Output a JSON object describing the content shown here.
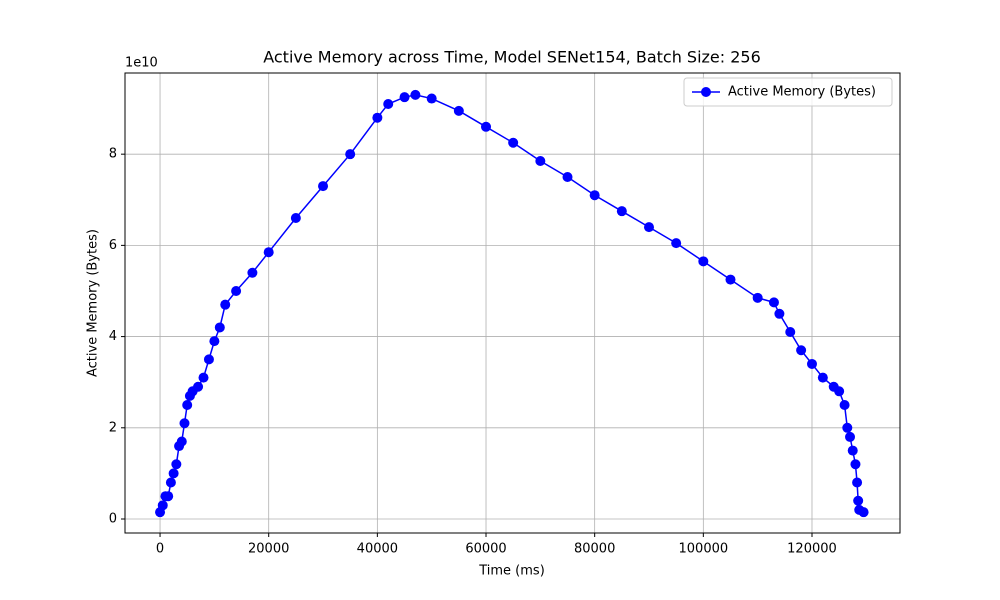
{
  "chart_data": {
    "type": "line",
    "title": "Active Memory across Time, Model SENet154, Batch Size: 256",
    "x_label": "Time (ms)",
    "y_label": "Active Memory (Bytes)",
    "y_offset_label": "1e10",
    "grid": true,
    "legend": "upper right",
    "marker": "o",
    "xlim": [
      -6450,
      136200
    ],
    "xticks": [
      0,
      20000,
      40000,
      60000,
      80000,
      100000,
      120000
    ],
    "ylim": [
      -3070000000.0,
      97800000000.0
    ],
    "yticks": [
      {
        "value": 0,
        "label": "0"
      },
      {
        "value": 20000000000.0,
        "label": "2"
      },
      {
        "value": 40000000000.0,
        "label": "4"
      },
      {
        "value": 60000000000.0,
        "label": "6"
      },
      {
        "value": 80000000000.0,
        "label": "8"
      }
    ],
    "x": [
      0,
      500,
      1000,
      1500,
      2000,
      2500,
      3000,
      3500,
      4000,
      4500,
      5000,
      5500,
      6000,
      7000,
      8000,
      9000,
      10000,
      11000,
      12000,
      14000,
      17000,
      20000,
      25000,
      30000,
      35000,
      40000,
      42000,
      45000,
      47000,
      50000,
      55000,
      60000,
      65000,
      70000,
      75000,
      80000,
      85000,
      90000,
      95000,
      100000,
      105000,
      110000,
      113000,
      114000,
      116000,
      118000,
      120000,
      122000,
      124000,
      125000,
      126000,
      126500,
      127000,
      127500,
      128000,
      128300,
      128500,
      128700,
      129500
    ],
    "series": [
      {
        "name": "Active Memory (Bytes)",
        "color": "#0000ff",
        "values": [
          1500000000.0,
          3000000000.0,
          5000000000.0,
          5000000000.0,
          8000000000.0,
          10000000000.0,
          12000000000.0,
          16000000000.0,
          17000000000.0,
          21000000000.0,
          25000000000.0,
          27000000000.0,
          28000000000.0,
          29000000000.0,
          31000000000.0,
          35000000000.0,
          39000000000.0,
          42000000000.0,
          47000000000.0,
          50000000000.0,
          54000000000.0,
          58500000000.0,
          66000000000.0,
          73000000000.0,
          80000000000.0,
          88000000000.0,
          91000000000.0,
          92500000000.0,
          93000000000.0,
          92200000000.0,
          89500000000.0,
          86000000000.0,
          82500000000.0,
          78500000000.0,
          75000000000.0,
          71000000000.0,
          67500000000.0,
          64000000000.0,
          60500000000.0,
          56500000000.0,
          52500000000.0,
          48500000000.0,
          47500000000.0,
          45000000000.0,
          41000000000.0,
          37000000000.0,
          34000000000.0,
          31000000000.0,
          29000000000.0,
          28000000000.0,
          25000000000.0,
          20000000000.0,
          18000000000.0,
          15000000000.0,
          12000000000.0,
          8000000000.0,
          4000000000.0,
          2000000000.0,
          1500000000.0
        ]
      }
    ]
  }
}
